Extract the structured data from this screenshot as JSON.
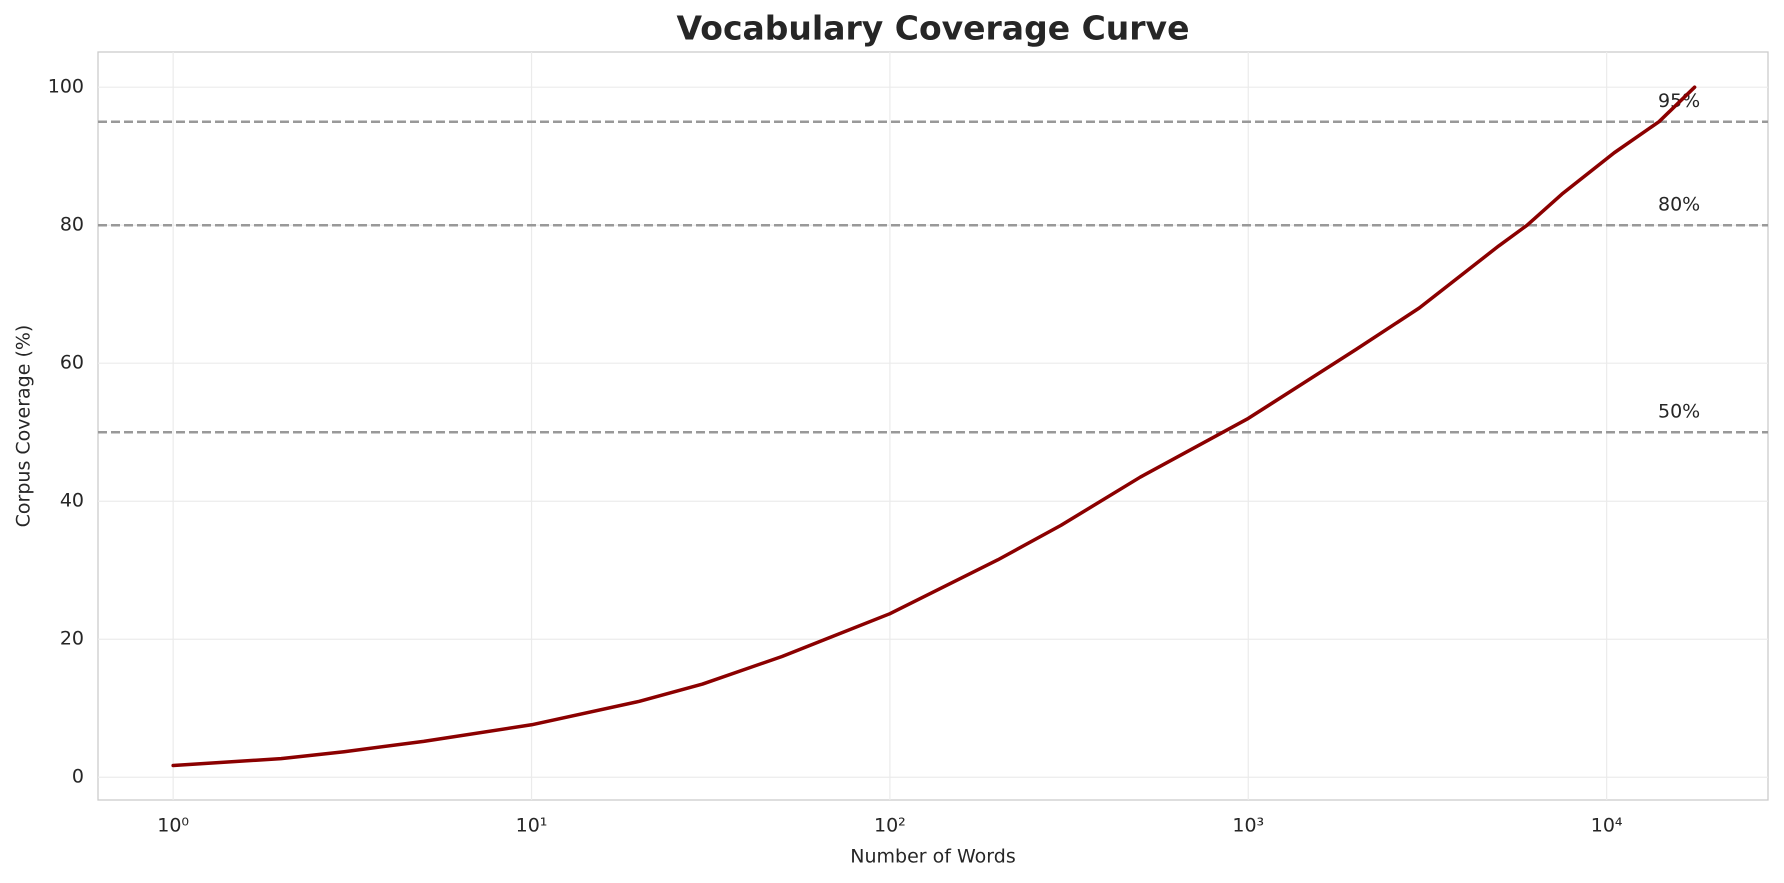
{
  "chart_data": {
    "type": "line",
    "title": "Vocabulary Coverage Curve",
    "x_label": "Number of Words",
    "y_label": "Corpus Coverage (%)",
    "x": [
      1,
      2,
      3,
      5,
      10,
      20,
      30,
      50,
      100,
      200,
      300,
      500,
      1000,
      2000,
      3000,
      5000,
      6000,
      7500,
      10500,
      14000,
      17600
    ],
    "series": [
      {
        "color": "#8b0000",
        "values": [
          1.7,
          2.7,
          3.7,
          5.2,
          7.6,
          11,
          13.5,
          17.5,
          23.7,
          31.5,
          36.5,
          43.5,
          52,
          62,
          68,
          77,
          80,
          84.5,
          90.5,
          95,
          100
        ]
      }
    ],
    "x_log": true,
    "xlim": [
      0.617,
      28200
    ],
    "ylim": [
      -3.3,
      105.1
    ],
    "xticks": [
      {
        "value": 1,
        "label": "10⁰"
      },
      {
        "value": 10,
        "label": "10¹"
      },
      {
        "value": 100,
        "label": "10²"
      },
      {
        "value": 1000,
        "label": "10³"
      },
      {
        "value": 10000,
        "label": "10⁴"
      }
    ],
    "yticks": [
      0,
      20,
      40,
      60,
      80,
      100
    ],
    "grid": true,
    "hlines": [
      {
        "value": 95,
        "label": "95%"
      },
      {
        "value": 80,
        "label": "80%"
      },
      {
        "value": 50,
        "label": "50%"
      }
    ],
    "hline_color": "#999999"
  }
}
